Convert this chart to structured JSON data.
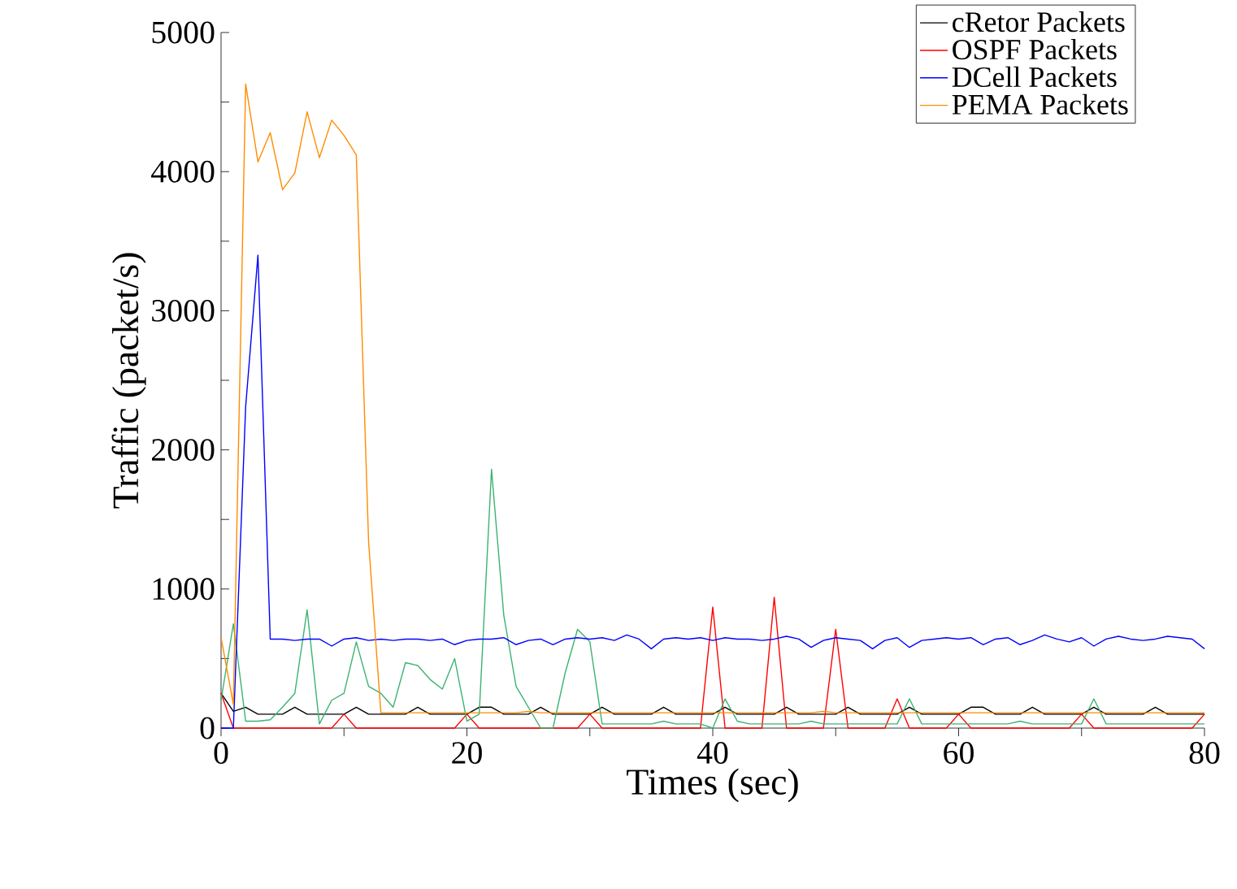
{
  "chart_data": {
    "type": "line",
    "xlabel": "Times (sec)",
    "ylabel": "Traffic (packet/s)",
    "x": [
      0,
      1,
      2,
      3,
      4,
      5,
      6,
      7,
      8,
      9,
      10,
      11,
      12,
      13,
      14,
      15,
      16,
      17,
      18,
      19,
      20,
      21,
      22,
      23,
      24,
      25,
      26,
      27,
      28,
      29,
      30,
      31,
      32,
      33,
      34,
      35,
      36,
      37,
      38,
      39,
      40,
      41,
      42,
      43,
      44,
      45,
      46,
      47,
      48,
      49,
      50,
      51,
      52,
      53,
      54,
      55,
      56,
      57,
      58,
      59,
      60,
      61,
      62,
      63,
      64,
      65,
      66,
      67,
      68,
      69,
      70,
      71,
      72,
      73,
      74,
      75,
      76,
      77,
      78,
      79,
      80
    ],
    "xlim": [
      0,
      80
    ],
    "ylim": [
      0,
      5000
    ],
    "xticks": [
      0,
      {
        "value": 10,
        "label": null
      },
      20,
      {
        "value": 30,
        "label": null
      },
      40,
      {
        "value": 50,
        "label": null
      },
      60,
      {
        "value": 70,
        "label": null
      },
      80
    ],
    "yticks": [
      0,
      {
        "value": 500,
        "label": null
      },
      1000,
      {
        "value": 1500,
        "label": null
      },
      2000,
      {
        "value": 2500,
        "label": null
      },
      3000,
      {
        "value": 3500,
        "label": null
      },
      4000,
      {
        "value": 4500,
        "label": null
      },
      5000
    ],
    "legend": "top right",
    "series": [
      {
        "name": "cRetor Packets",
        "color": "#000000",
        "values": [
          250,
          120,
          150,
          100,
          100,
          100,
          150,
          100,
          100,
          100,
          100,
          150,
          100,
          100,
          100,
          100,
          150,
          100,
          100,
          100,
          100,
          150,
          150,
          100,
          100,
          100,
          150,
          100,
          100,
          100,
          100,
          150,
          100,
          100,
          100,
          100,
          150,
          100,
          100,
          100,
          100,
          150,
          100,
          100,
          100,
          100,
          150,
          100,
          100,
          100,
          100,
          150,
          100,
          100,
          100,
          100,
          150,
          100,
          100,
          100,
          100,
          150,
          150,
          100,
          100,
          100,
          150,
          100,
          100,
          100,
          100,
          150,
          100,
          100,
          100,
          100,
          150,
          100,
          100,
          100,
          100
        ]
      },
      {
        "name": "OSPF Packets",
        "color": "#ff0000",
        "values": [
          250,
          0,
          0,
          0,
          0,
          0,
          0,
          0,
          0,
          0,
          100,
          0,
          0,
          0,
          0,
          0,
          0,
          0,
          0,
          0,
          100,
          0,
          0,
          0,
          0,
          0,
          0,
          0,
          0,
          0,
          100,
          0,
          0,
          0,
          0,
          0,
          0,
          0,
          0,
          0,
          870,
          0,
          0,
          0,
          0,
          940,
          0,
          0,
          0,
          0,
          710,
          0,
          0,
          0,
          0,
          210,
          0,
          0,
          0,
          0,
          100,
          0,
          0,
          0,
          0,
          0,
          0,
          0,
          0,
          0,
          100,
          0,
          0,
          0,
          0,
          0,
          0,
          0,
          0,
          0,
          100
        ]
      },
      {
        "color": "#3cb371",
        "values": [
          200,
          750,
          50,
          50,
          60,
          150,
          250,
          850,
          30,
          200,
          250,
          620,
          300,
          250,
          150,
          470,
          450,
          350,
          280,
          500,
          50,
          100,
          1860,
          810,
          300,
          150,
          0,
          0,
          400,
          710,
          620,
          30,
          30,
          30,
          30,
          30,
          50,
          30,
          30,
          30,
          0,
          210,
          50,
          30,
          30,
          30,
          30,
          30,
          50,
          30,
          30,
          30,
          30,
          30,
          30,
          30,
          210,
          30,
          30,
          30,
          30,
          30,
          30,
          30,
          30,
          50,
          30,
          30,
          30,
          30,
          30,
          210,
          30,
          30,
          30,
          30,
          30,
          30,
          30,
          30,
          30
        ]
      },
      {
        "name": "DCell Packets",
        "color": "#0000ff",
        "values": [
          0,
          0,
          2310,
          3400,
          640,
          640,
          630,
          640,
          640,
          590,
          640,
          650,
          630,
          640,
          630,
          640,
          640,
          630,
          640,
          600,
          630,
          640,
          640,
          650,
          600,
          630,
          640,
          600,
          640,
          650,
          640,
          650,
          630,
          670,
          640,
          570,
          640,
          650,
          640,
          650,
          630,
          650,
          640,
          640,
          630,
          640,
          660,
          640,
          580,
          630,
          650,
          640,
          630,
          570,
          630,
          650,
          580,
          630,
          640,
          650,
          640,
          650,
          600,
          640,
          650,
          600,
          630,
          670,
          640,
          620,
          650,
          590,
          640,
          660,
          640,
          630,
          640,
          660,
          650,
          640,
          570
        ]
      },
      {
        "name": "PEMA Packets",
        "color": "#ff8c00",
        "values": [
          650,
          170,
          4630,
          4070,
          4280,
          3870,
          3990,
          4430,
          4100,
          4370,
          4260,
          4120,
          1340,
          110,
          110,
          110,
          110,
          110,
          110,
          110,
          110,
          110,
          110,
          110,
          110,
          120,
          110,
          110,
          110,
          110,
          110,
          110,
          110,
          110,
          110,
          110,
          110,
          110,
          110,
          110,
          110,
          110,
          110,
          110,
          110,
          110,
          110,
          110,
          110,
          120,
          110,
          110,
          110,
          110,
          110,
          110,
          110,
          110,
          110,
          110,
          110,
          110,
          110,
          110,
          110,
          110,
          110,
          110,
          110,
          110,
          110,
          110,
          110,
          110,
          110,
          110,
          110,
          110,
          110,
          110,
          110
        ]
      }
    ]
  }
}
